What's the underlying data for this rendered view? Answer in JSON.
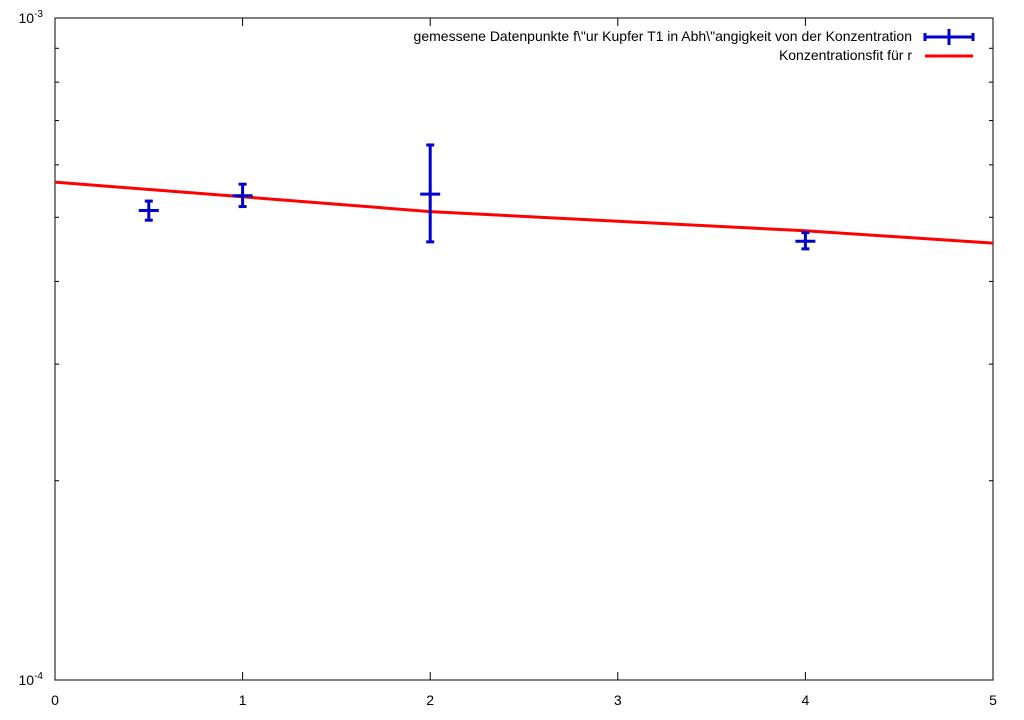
{
  "chart_data": {
    "type": "scatter",
    "title": "",
    "xlabel": "",
    "ylabel": "",
    "xlim": [
      0,
      5
    ],
    "ylim": [
      0.0001,
      0.001
    ],
    "yscale": "log",
    "grid": false,
    "legend_position": "top-right",
    "x_ticks": [
      {
        "value": 0,
        "label": "0"
      },
      {
        "value": 1,
        "label": "1"
      },
      {
        "value": 2,
        "label": "2"
      },
      {
        "value": 3,
        "label": "3"
      },
      {
        "value": 4,
        "label": "4"
      },
      {
        "value": 5,
        "label": "5"
      }
    ],
    "y_ticks": [
      {
        "value": 0.001,
        "base": "10",
        "exponent": "-3"
      },
      {
        "value": 0.0001,
        "base": "10",
        "exponent": "-4"
      }
    ],
    "series": [
      {
        "name": "gemessene Datenpunkte f\\\"ur Kupfer T1 in Abh\\\"angigkeit von der Konzentration",
        "kind": "errorbars",
        "color": "#0000cc",
        "points": [
          {
            "x": 0.5,
            "y": 0.000512,
            "y_low": 0.000495,
            "y_high": 0.000529
          },
          {
            "x": 1,
            "y": 0.000539,
            "y_low": 0.000519,
            "y_high": 0.000561
          },
          {
            "x": 2,
            "y": 0.000542,
            "y_low": 0.000459,
            "y_high": 0.000643
          },
          {
            "x": 4,
            "y": 0.00046,
            "y_low": 0.000448,
            "y_high": 0.000474
          }
        ]
      },
      {
        "name": "Konzentrationsfit für r",
        "kind": "line",
        "color": "#ff0000",
        "x": [
          0,
          1,
          2,
          3,
          4,
          5
        ],
        "y": [
          0.000565,
          0.000537,
          0.00051,
          0.000493,
          0.000477,
          0.000457
        ]
      }
    ]
  }
}
